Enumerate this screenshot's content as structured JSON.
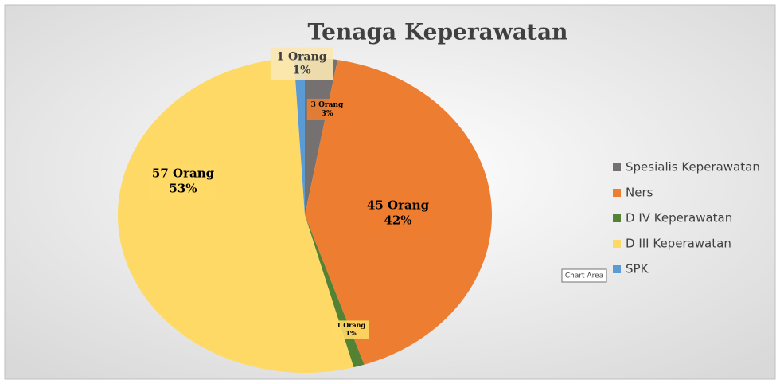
{
  "chart_data": {
    "type": "pie",
    "title": "Tenaga Keperawatan",
    "categories": [
      "Spesialis Keperawatan",
      "Ners",
      "D IV Keperawatan",
      "D III Keperawatan",
      "SPK"
    ],
    "values": [
      3,
      45,
      1,
      57,
      1
    ],
    "value_labels": [
      "3 Orang",
      "45 Orang",
      "1 Orang",
      "57 Orang",
      "1 Orang"
    ],
    "percent_labels": [
      "3%",
      "42%",
      "1%",
      "53%",
      "1%"
    ],
    "colors": [
      "#767171",
      "#ed7d31",
      "#548235",
      "#ffd966",
      "#5b9bd5"
    ],
    "legend": "right",
    "tooltip": "Chart Area"
  }
}
